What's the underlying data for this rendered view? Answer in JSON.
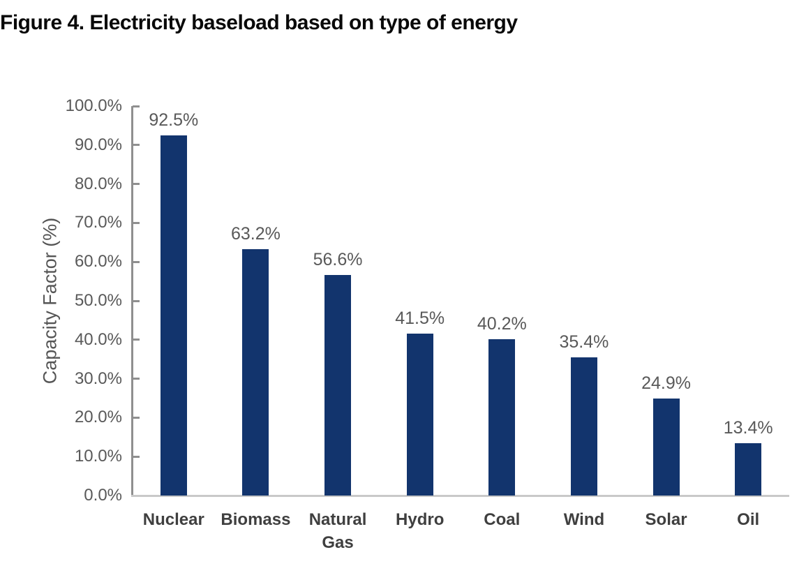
{
  "figure": {
    "title": "Figure 4. Electricity baseload based on type of energy"
  },
  "chart_data": {
    "type": "bar",
    "title": "Figure 4. Electricity baseload based on type of energy",
    "categories": [
      "Nuclear",
      "Biomass",
      "Natural Gas",
      "Hydro",
      "Coal",
      "Wind",
      "Solar",
      "Oil"
    ],
    "values": [
      92.5,
      63.2,
      56.6,
      41.5,
      40.2,
      35.4,
      24.9,
      13.4
    ],
    "data_labels": [
      "92.5%",
      "63.2%",
      "56.6%",
      "41.5%",
      "40.2%",
      "35.4%",
      "24.9%",
      "13.4%"
    ],
    "xlabel": "",
    "ylabel": "Capacity Factor (%)",
    "ylim": [
      0,
      100
    ],
    "y_tick_labels": [
      "0.0%",
      "10.0%",
      "20.0%",
      "30.0%",
      "40.0%",
      "50.0%",
      "60.0%",
      "70.0%",
      "80.0%",
      "90.0%",
      "100.0%"
    ],
    "grid": false,
    "legend": "none",
    "colors": {
      "bar": "#12346d",
      "value_label": "#595959",
      "tick_label": "#595959",
      "category_label": "#3f3f3f",
      "axis": "#8f8f8f",
      "baseline": "#c9c9c9"
    }
  }
}
